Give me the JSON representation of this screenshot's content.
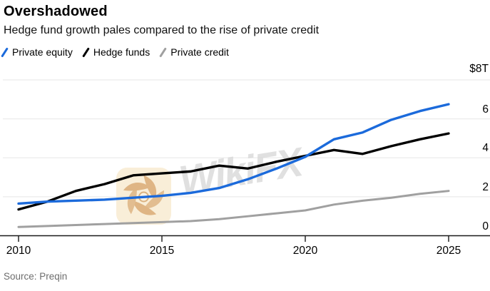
{
  "header": {
    "title": "Overshadowed",
    "subtitle": "Hedge fund growth pales compared to the rise of private credit"
  },
  "source": "Source: Preqin",
  "watermark": {
    "text": "WikiFX"
  },
  "colors": {
    "private_equity": "#1b6adb",
    "hedge_funds": "#000000",
    "private_credit": "#a0a0a0",
    "gridline": "#ebebeb",
    "axis": "#1a1a1a",
    "source_text": "#6e6e6e"
  },
  "chart_data": {
    "type": "line",
    "title": "Overshadowed",
    "subtitle": "Hedge fund growth pales compared to the rise of private credit",
    "x": [
      2010,
      2011,
      2012,
      2013,
      2014,
      2015,
      2016,
      2017,
      2018,
      2019,
      2020,
      2021,
      2022,
      2023,
      2024,
      2025
    ],
    "series": [
      {
        "name": "Private equity",
        "color": "#1b6adb",
        "values": [
          1.65,
          1.75,
          1.8,
          1.85,
          1.95,
          2.05,
          2.2,
          2.45,
          2.9,
          3.45,
          4.05,
          4.95,
          5.3,
          5.95,
          6.4,
          6.75
        ]
      },
      {
        "name": "Hedge funds",
        "color": "#000000",
        "values": [
          1.35,
          1.75,
          2.3,
          2.65,
          3.1,
          3.2,
          3.3,
          3.6,
          3.45,
          3.8,
          4.1,
          4.4,
          4.2,
          4.6,
          4.95,
          5.25
        ]
      },
      {
        "name": "Private credit",
        "color": "#a0a0a0",
        "values": [
          0.45,
          0.5,
          0.55,
          0.6,
          0.65,
          0.7,
          0.75,
          0.85,
          1.0,
          1.15,
          1.3,
          1.6,
          1.8,
          1.95,
          2.15,
          2.3
        ]
      }
    ],
    "unit": "trillion USD",
    "ylim": [
      0,
      8
    ],
    "yticks": [
      0,
      2,
      4,
      6
    ],
    "grid_yticks": [
      2,
      4,
      6,
      8
    ],
    "top_axis_label": "$8T",
    "xticks": [
      2010,
      2015,
      2020,
      2025
    ],
    "grid": true,
    "legend_position": "top-left"
  }
}
